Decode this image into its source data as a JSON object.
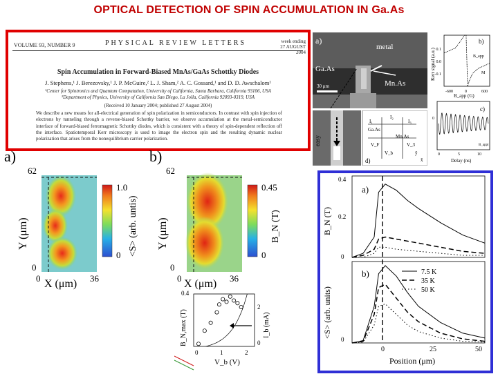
{
  "slide_title": "OPTICAL DETECTION OF SPIN ACCUMULATION IN Ga.As",
  "paper": {
    "volume": "VOLUME 93, NUMBER 9",
    "journal": "PHYSICAL  REVIEW  LETTERS",
    "week": "week ending\n27 AUGUST 2004",
    "title": "Spin Accumulation in Forward-Biased MnAs/GaAs Schottky Diodes",
    "authors": "J. Stephens,¹ J. Berezovsky,¹ J. P. McGuire,² L. J. Sham,² A. C. Gossard,¹ and D. D. Awschalom¹",
    "affil1": "¹Center for Spintronics and Quantum Computation, University of California, Santa Barbara, California 93106, USA",
    "affil2": "²Department of Physics, University of California San Diego, La Jolla, California 92093-0319, USA",
    "received": "(Received 10 January 2004; published 27 August 2004)",
    "abstract": "We describe a new means for all-electrical generation of spin polarization in semiconductors. In contrast with spin injection of electrons by tunneling through a reverse-biased Schottky barrier, we observe accumulation at the metal-semiconductor interface of forward-biased ferromagnetic Schottky diodes, which is consistent with a theory of spin-dependent reflection off the interface. Spatiotemporal Kerr microscopy is used to image the electron spin and the resulting dynamic nuclear polarization that arises from the nonequilibrium carrier polarization."
  },
  "micrograph": {
    "panel_label": "a)",
    "metal_label": "metal",
    "gaas_label": "Ga.As",
    "mnas_label": "Mn.As",
    "scale_label": "30 μm",
    "easy_label": "easy"
  },
  "circuit": {
    "panel_label": "d)",
    "labels": [
      "I₁",
      "I₂",
      "I₃",
      "Ga.As",
      "Mn.As",
      "V_F",
      "V_3",
      "V_b",
      "ŷ",
      "x̂"
    ]
  },
  "kerr_b": {
    "panel_label": "b)",
    "ylabel": "Kerr signal (a.u.)",
    "xlabel": "B_app (G)",
    "ticks_x": [
      "-600",
      "0",
      "600"
    ],
    "ticks_y": [
      "0.1",
      "0.0",
      "-0.1"
    ],
    "legend": "B_app",
    "m_label": "M",
    "chart_data": {
      "type": "line",
      "x": [
        -600,
        -450,
        -300,
        -150,
        -60,
        -20,
        0,
        20,
        60,
        150,
        300,
        450,
        600
      ],
      "y": [
        0.03,
        0.04,
        0.05,
        0.08,
        0.12,
        0.16,
        0.0,
        -0.14,
        -0.08,
        -0.05,
        -0.03,
        -0.02,
        -0.01
      ],
      "xlim": [
        -600,
        600
      ],
      "ylim": [
        -0.1,
        0.1
      ]
    }
  },
  "kerr_c": {
    "panel_label": "c)",
    "ylabel": "Kerr signal (a.u.)",
    "xlabel": "Delay (ns)",
    "ticks_x": [
      "0",
      "5",
      "10"
    ],
    "legend": "B_appl",
    "chart_data": {
      "type": "line",
      "x_range": [
        0,
        12
      ],
      "oscillation_periods": 11,
      "damping": "slow"
    }
  },
  "map_a": {
    "panel_label": "a)",
    "y_label": "Y (μm)",
    "x_label": "X (μm)",
    "y_top": "62",
    "y_bottom": "0",
    "x_left": "0",
    "x_right": "36",
    "cbar_top": "1.0",
    "cbar_bottom": "0",
    "cbar_label": "<S> (arb. untis)"
  },
  "map_b": {
    "panel_label": "b)",
    "y_label": "Y (μm)",
    "x_label": "X (μm)",
    "y_top": "62",
    "y_bottom": "0",
    "x_left": "0",
    "x_right": "36",
    "cbar_top": "0.45",
    "cbar_bottom": "0",
    "cbar_label": "B_N (T)"
  },
  "inset": {
    "ylabel_left": "B_N,max (T)",
    "ylabel_right": "I_b (mA)",
    "xlabel": "V_b (V)",
    "ticks_x": [
      "0",
      "1",
      "2"
    ],
    "ticks_y_right": [
      "0",
      "2"
    ],
    "tick_top": "0.4",
    "chart_data": {
      "type": "scatter",
      "points_v": [
        0.2,
        0.45,
        0.7,
        0.95,
        1.05,
        1.2,
        1.35,
        1.5,
        1.65,
        1.8,
        1.95
      ],
      "points_bn": [
        0.02,
        0.12,
        0.18,
        0.26,
        0.32,
        0.36,
        0.34,
        0.38,
        0.35,
        0.33,
        0.3
      ],
      "current_curve": "exponential rise",
      "xlim": [
        0,
        2.5
      ]
    }
  },
  "blue_fig": {
    "a_label": "a)",
    "b_label": "b)",
    "ylabel_a": "B_N (T)",
    "ylabel_b": "<S> (arb. units)",
    "xlabel": "Position (μm)",
    "ticks_x": [
      "0",
      "25",
      "50"
    ],
    "ticks_y_a": [
      "0.4",
      "0.2",
      "0"
    ],
    "ticks_y_b": [
      "0"
    ],
    "legend": [
      "7.5 K",
      "35 K",
      "50 K"
    ],
    "chart_data": [
      {
        "type": "line",
        "panel": "a",
        "ylim": [
          0,
          0.4
        ],
        "xlim": [
          -10,
          50
        ],
        "series": [
          {
            "name": "7.5 K",
            "x": [
              -10,
              -5,
              0,
              2,
              5,
              10,
              15,
              20,
              30,
              40,
              50
            ],
            "y": [
              0.0,
              0.02,
              0.1,
              0.32,
              0.36,
              0.33,
              0.28,
              0.24,
              0.17,
              0.11,
              0.07
            ]
          },
          {
            "name": "35 K",
            "x": [
              -10,
              -5,
              0,
              2,
              5,
              10,
              20,
              30,
              40,
              50
            ],
            "y": [
              0.0,
              0.01,
              0.04,
              0.09,
              0.1,
              0.09,
              0.07,
              0.05,
              0.03,
              0.02
            ]
          },
          {
            "name": "50 K",
            "x": [
              -10,
              -5,
              0,
              2,
              5,
              10,
              20,
              30,
              40,
              50
            ],
            "y": [
              0.0,
              0.0,
              0.02,
              0.05,
              0.05,
              0.04,
              0.03,
              0.02,
              0.01,
              0.01
            ]
          }
        ]
      },
      {
        "type": "line",
        "panel": "b",
        "ylim": [
          0,
          1.0
        ],
        "xlim": [
          -10,
          50
        ],
        "series": [
          {
            "name": "7.5 K",
            "x": [
              -10,
              -5,
              0,
              2,
              5,
              10,
              15,
              20,
              30,
              40,
              50
            ],
            "y": [
              0.0,
              0.03,
              0.45,
              0.85,
              0.95,
              0.82,
              0.62,
              0.45,
              0.25,
              0.12,
              0.06
            ]
          },
          {
            "name": "35 K",
            "x": [
              -10,
              -5,
              0,
              2,
              5,
              10,
              15,
              20,
              30,
              40,
              50
            ],
            "y": [
              0.0,
              0.02,
              0.35,
              0.68,
              0.72,
              0.55,
              0.38,
              0.26,
              0.12,
              0.05,
              0.02
            ]
          },
          {
            "name": "50 K",
            "x": [
              -10,
              -5,
              0,
              2,
              5,
              10,
              15,
              20,
              30,
              40,
              50
            ],
            "y": [
              0.0,
              0.01,
              0.22,
              0.45,
              0.48,
              0.35,
              0.22,
              0.14,
              0.06,
              0.02,
              0.01
            ]
          }
        ]
      }
    ]
  }
}
